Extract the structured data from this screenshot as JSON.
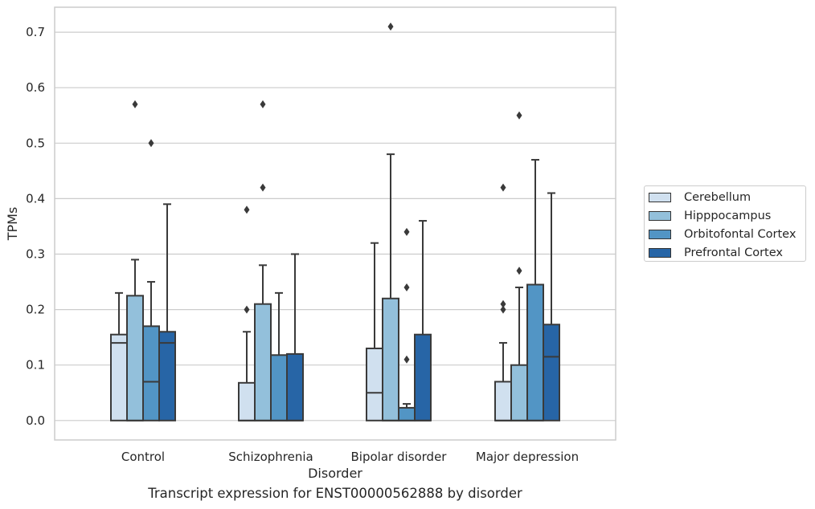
{
  "chart_data": {
    "type": "box",
    "caption": "Transcript expression for ENST00000562888 by disorder",
    "xlabel": "Disorder",
    "ylabel": "TPMs",
    "ylim": [
      -0.035,
      0.745
    ],
    "yticks": [
      0.0,
      0.1,
      0.2,
      0.3,
      0.4,
      0.5,
      0.6,
      0.7
    ],
    "ytick_labels": [
      "0.0",
      "0.1",
      "0.2",
      "0.3",
      "0.4",
      "0.5",
      "0.6",
      "0.7"
    ],
    "grid": true,
    "legend_position": "right",
    "categories": [
      "Control",
      "Schizophrenia",
      "Bipolar disorder",
      "Major depression"
    ],
    "series": [
      {
        "name": "Cerebellum",
        "color": "#d0e0ef",
        "boxes": [
          {
            "q1": 0.0,
            "median": 0.14,
            "q3": 0.155,
            "whisker_low": 0.0,
            "whisker_high": 0.23,
            "outliers": []
          },
          {
            "q1": 0.0,
            "median": 0.0,
            "q3": 0.068,
            "whisker_low": 0.0,
            "whisker_high": 0.16,
            "outliers": [
              0.2,
              0.38
            ]
          },
          {
            "q1": 0.0,
            "median": 0.05,
            "q3": 0.13,
            "whisker_low": 0.0,
            "whisker_high": 0.32,
            "outliers": []
          },
          {
            "q1": 0.0,
            "median": 0.0,
            "q3": 0.07,
            "whisker_low": 0.0,
            "whisker_high": 0.14,
            "outliers": [
              0.2,
              0.21,
              0.42
            ]
          }
        ]
      },
      {
        "name": "Hipppocampus",
        "color": "#93c0db",
        "boxes": [
          {
            "q1": 0.0,
            "median": 0.0,
            "q3": 0.225,
            "whisker_low": 0.0,
            "whisker_high": 0.29,
            "outliers": [
              0.57
            ]
          },
          {
            "q1": 0.0,
            "median": 0.0,
            "q3": 0.21,
            "whisker_low": 0.0,
            "whisker_high": 0.28,
            "outliers": [
              0.42,
              0.57
            ]
          },
          {
            "q1": 0.0,
            "median": 0.0,
            "q3": 0.22,
            "whisker_low": 0.0,
            "whisker_high": 0.48,
            "outliers": [
              0.71
            ]
          },
          {
            "q1": 0.0,
            "median": 0.0,
            "q3": 0.1,
            "whisker_low": 0.0,
            "whisker_high": 0.24,
            "outliers": [
              0.27,
              0.55
            ]
          }
        ]
      },
      {
        "name": "Orbitofontal Cortex",
        "color": "#5295c5",
        "boxes": [
          {
            "q1": 0.0,
            "median": 0.07,
            "q3": 0.17,
            "whisker_low": 0.0,
            "whisker_high": 0.25,
            "outliers": [
              0.5
            ]
          },
          {
            "q1": 0.0,
            "median": 0.0,
            "q3": 0.118,
            "whisker_low": 0.0,
            "whisker_high": 0.23,
            "outliers": []
          },
          {
            "q1": 0.0,
            "median": 0.0,
            "q3": 0.023,
            "whisker_low": 0.0,
            "whisker_high": 0.03,
            "outliers": [
              0.11,
              0.24,
              0.34
            ]
          },
          {
            "q1": 0.0,
            "median": 0.0,
            "q3": 0.245,
            "whisker_low": 0.0,
            "whisker_high": 0.47,
            "outliers": []
          }
        ]
      },
      {
        "name": "Prefrontal Cortex",
        "color": "#2765a6",
        "boxes": [
          {
            "q1": 0.0,
            "median": 0.14,
            "q3": 0.16,
            "whisker_low": 0.0,
            "whisker_high": 0.39,
            "outliers": []
          },
          {
            "q1": 0.0,
            "median": 0.0,
            "q3": 0.12,
            "whisker_low": 0.0,
            "whisker_high": 0.3,
            "outliers": []
          },
          {
            "q1": 0.0,
            "median": 0.0,
            "q3": 0.155,
            "whisker_low": 0.0,
            "whisker_high": 0.36,
            "outliers": []
          },
          {
            "q1": 0.0,
            "median": 0.115,
            "q3": 0.173,
            "whisker_low": 0.0,
            "whisker_high": 0.41,
            "outliers": []
          }
        ]
      }
    ]
  }
}
